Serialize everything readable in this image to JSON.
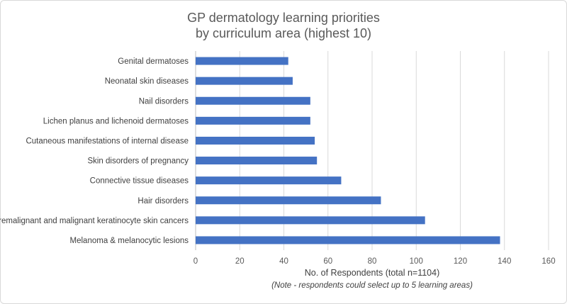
{
  "chart_data": {
    "type": "bar",
    "orientation": "horizontal",
    "title": [
      "GP dermatology learning priorities",
      "by curriculum area (highest 10)"
    ],
    "categories": [
      "Genital dermatoses",
      "Neonatal skin diseases",
      "Nail disorders",
      "Lichen planus and lichenoid dermatoses",
      "Cutaneous manifestations of internal disease",
      "Skin disorders of pregnancy",
      "Connective tissue diseases",
      "Hair disorders",
      "Premalignant and malignant keratinocyte skin cancers",
      "Melanoma & melanocytic lesions"
    ],
    "values": [
      42,
      44,
      52,
      52,
      54,
      55,
      66,
      84,
      104,
      138
    ],
    "xlim": [
      0,
      160
    ],
    "xticks": [
      0,
      20,
      40,
      60,
      80,
      100,
      120,
      140,
      160
    ],
    "xlabel": "No. of Respondents (total n=1104)",
    "note": "(Note - respondents could select up to 5 learning areas)",
    "grid": "vertical",
    "bar_color": "#4472c4",
    "grid_color": "#d9d9d9"
  }
}
